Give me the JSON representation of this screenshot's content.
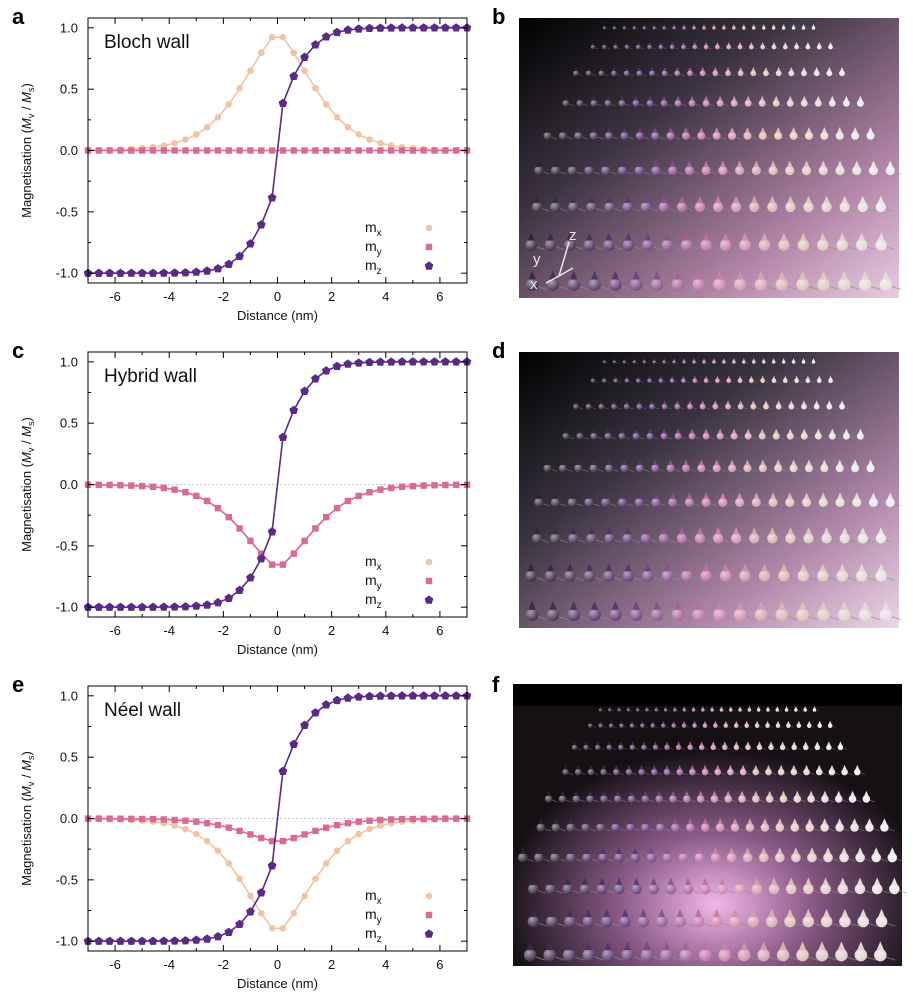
{
  "panels": {
    "a": "a",
    "b": "b",
    "c": "c",
    "d": "d",
    "e": "e",
    "f": "f"
  },
  "axes_labels": {
    "y": "y",
    "z": "z",
    "x": "x"
  },
  "colors": {
    "mx": "#f2c4a4",
    "my": "#d96a94",
    "mz": "#5b2a86"
  },
  "chart_data": [
    {
      "type": "line",
      "title": "Bloch wall",
      "xlabel": "Distance (nm)",
      "ylabel": "Magnetisation (M_v / M_s)",
      "ylabel_parts": {
        "pre": "Magnetisation (",
        "m1": "M",
        "s1": "v",
        "sep": " / ",
        "m2": "M",
        "s2": "s",
        "post": ")"
      },
      "xlim": [
        -7,
        7
      ],
      "ylim": [
        -1.08,
        1.08
      ],
      "xticks": [
        -6,
        -4,
        -2,
        0,
        2,
        4,
        6
      ],
      "xtick_labels": [
        "-6",
        "-4",
        "-2",
        "0",
        "2",
        "4",
        "6"
      ],
      "yticks": [
        -1.0,
        -0.5,
        0.0,
        0.5,
        1.0
      ],
      "ytick_labels": [
        "-1.0",
        "-0.5",
        "0.0",
        "0.5",
        "1.0"
      ],
      "x": [
        -7.0,
        -6.6,
        -6.2,
        -5.8,
        -5.4,
        -5.0,
        -4.6,
        -4.2,
        -3.8,
        -3.4,
        -3.0,
        -2.6,
        -2.2,
        -1.8,
        -1.4,
        -1.0,
        -0.6,
        -0.2,
        0.2,
        0.6,
        1.0,
        1.4,
        1.8,
        2.2,
        2.6,
        3.0,
        3.4,
        3.8,
        4.2,
        4.6,
        5.0,
        5.4,
        5.8,
        6.2,
        6.6,
        7.0
      ],
      "series": [
        {
          "name": "mx",
          "label_main": "m",
          "label_sub": "x",
          "marker": "circle",
          "values": [
            0.003,
            0.004,
            0.006,
            0.008,
            0.012,
            0.018,
            0.027,
            0.04,
            0.06,
            0.089,
            0.131,
            0.19,
            0.271,
            0.376,
            0.507,
            0.65,
            0.796,
            0.923,
            0.923,
            0.796,
            0.65,
            0.507,
            0.376,
            0.271,
            0.19,
            0.131,
            0.089,
            0.06,
            0.04,
            0.027,
            0.018,
            0.012,
            0.008,
            0.006,
            0.004,
            0.003
          ]
        },
        {
          "name": "my",
          "label_main": "m",
          "label_sub": "y",
          "marker": "square",
          "values": [
            0.0,
            0.0,
            0.0,
            0.0,
            0.0,
            0.0,
            0.0,
            0.0,
            0.0,
            0.0,
            0.0,
            0.0,
            0.0,
            0.0,
            0.0,
            0.0,
            0.0,
            0.0,
            0.0,
            0.0,
            0.0,
            0.0,
            0.0,
            0.0,
            0.0,
            0.0,
            0.0,
            0.0,
            0.0,
            0.0,
            0.0,
            0.0,
            0.0,
            0.0,
            0.0,
            0.0
          ]
        },
        {
          "name": "mz",
          "label_main": "m",
          "label_sub": "z",
          "marker": "pentagon",
          "values": [
            -1.0,
            -1.0,
            -1.0,
            -1.0,
            -1.0,
            -1.0,
            -1.0,
            -0.999,
            -0.998,
            -0.996,
            -0.991,
            -0.982,
            -0.963,
            -0.927,
            -0.862,
            -0.76,
            -0.605,
            -0.385,
            0.385,
            0.605,
            0.76,
            0.862,
            0.927,
            0.963,
            0.982,
            0.991,
            0.996,
            0.998,
            0.999,
            1.0,
            1.0,
            1.0,
            1.0,
            1.0,
            1.0,
            1.0
          ]
        }
      ]
    },
    {
      "type": "line",
      "title": "Hybrid wall",
      "xlabel": "Distance (nm)",
      "ylabel": "Magnetisation (M_v / M_s)",
      "ylabel_parts": {
        "pre": "Magnetisation (",
        "m1": "M",
        "s1": "v",
        "sep": " / ",
        "m2": "M",
        "s2": "s",
        "post": ")"
      },
      "xlim": [
        -7,
        7
      ],
      "ylim": [
        -1.08,
        1.08
      ],
      "xticks": [
        -6,
        -4,
        -2,
        0,
        2,
        4,
        6
      ],
      "xtick_labels": [
        "-6",
        "-4",
        "-2",
        "0",
        "2",
        "4",
        "6"
      ],
      "yticks": [
        -1.0,
        -0.5,
        0.0,
        0.5,
        1.0
      ],
      "ytick_labels": [
        "-1.0",
        "-0.5",
        "0.0",
        "0.5",
        "1.0"
      ],
      "x": [
        -7.0,
        -6.6,
        -6.2,
        -5.8,
        -5.4,
        -5.0,
        -4.6,
        -4.2,
        -3.8,
        -3.4,
        -3.0,
        -2.6,
        -2.2,
        -1.8,
        -1.4,
        -1.0,
        -0.6,
        -0.2,
        0.2,
        0.6,
        1.0,
        1.4,
        1.8,
        2.2,
        2.6,
        3.0,
        3.4,
        3.8,
        4.2,
        4.6,
        5.0,
        5.4,
        5.8,
        6.2,
        6.6,
        7.0
      ],
      "series": [
        {
          "name": "mx",
          "label_main": "m",
          "label_sub": "x",
          "marker": "circle",
          "values": [
            -0.002,
            -0.003,
            -0.004,
            -0.006,
            -0.009,
            -0.013,
            -0.019,
            -0.028,
            -0.042,
            -0.063,
            -0.093,
            -0.134,
            -0.192,
            -0.266,
            -0.358,
            -0.46,
            -0.563,
            -0.653,
            -0.653,
            -0.563,
            -0.46,
            -0.358,
            -0.266,
            -0.192,
            -0.134,
            -0.093,
            -0.063,
            -0.042,
            -0.028,
            -0.019,
            -0.013,
            -0.009,
            -0.006,
            -0.004,
            -0.003,
            -0.002
          ]
        },
        {
          "name": "my",
          "label_main": "m",
          "label_sub": "y",
          "marker": "square",
          "values": [
            -0.002,
            -0.003,
            -0.004,
            -0.006,
            -0.009,
            -0.013,
            -0.019,
            -0.028,
            -0.042,
            -0.063,
            -0.093,
            -0.134,
            -0.192,
            -0.266,
            -0.358,
            -0.46,
            -0.563,
            -0.653,
            -0.653,
            -0.563,
            -0.46,
            -0.358,
            -0.266,
            -0.192,
            -0.134,
            -0.093,
            -0.063,
            -0.042,
            -0.028,
            -0.019,
            -0.013,
            -0.009,
            -0.006,
            -0.004,
            -0.003,
            -0.002
          ]
        },
        {
          "name": "mz",
          "label_main": "m",
          "label_sub": "z",
          "marker": "pentagon",
          "values": [
            -1.0,
            -1.0,
            -1.0,
            -1.0,
            -1.0,
            -1.0,
            -1.0,
            -0.999,
            -0.998,
            -0.996,
            -0.991,
            -0.982,
            -0.963,
            -0.927,
            -0.862,
            -0.76,
            -0.605,
            -0.385,
            0.385,
            0.605,
            0.76,
            0.862,
            0.927,
            0.963,
            0.982,
            0.991,
            0.996,
            0.998,
            0.999,
            1.0,
            1.0,
            1.0,
            1.0,
            1.0,
            1.0,
            1.0
          ]
        }
      ]
    },
    {
      "type": "line",
      "title": "Néel wall",
      "xlabel": "Distance (nm)",
      "ylabel": "Magnetisation (M_v / M_s)",
      "ylabel_parts": {
        "pre": "Magnetisation (",
        "m1": "M",
        "s1": "v",
        "sep": " / ",
        "m2": "M",
        "s2": "s",
        "post": ")"
      },
      "xlim": [
        -7,
        7
      ],
      "ylim": [
        -1.08,
        1.08
      ],
      "xticks": [
        -6,
        -4,
        -2,
        0,
        2,
        4,
        6
      ],
      "xtick_labels": [
        "-6",
        "-4",
        "-2",
        "0",
        "2",
        "4",
        "6"
      ],
      "yticks": [
        -1.0,
        -0.5,
        0.0,
        0.5,
        1.0
      ],
      "ytick_labels": [
        "-1.0",
        "-0.5",
        "0.0",
        "0.5",
        "1.0"
      ],
      "x": [
        -7.0,
        -6.6,
        -6.2,
        -5.8,
        -5.4,
        -5.0,
        -4.6,
        -4.2,
        -3.8,
        -3.4,
        -3.0,
        -2.6,
        -2.2,
        -1.8,
        -1.4,
        -1.0,
        -0.6,
        -0.2,
        0.2,
        0.6,
        1.0,
        1.4,
        1.8,
        2.2,
        2.6,
        3.0,
        3.4,
        3.8,
        4.2,
        4.6,
        5.0,
        5.4,
        5.8,
        6.2,
        6.6,
        7.0
      ],
      "series": [
        {
          "name": "mx",
          "label_main": "m",
          "label_sub": "x",
          "marker": "circle",
          "values": [
            -0.003,
            -0.004,
            -0.006,
            -0.008,
            -0.012,
            -0.017,
            -0.026,
            -0.039,
            -0.058,
            -0.086,
            -0.127,
            -0.185,
            -0.263,
            -0.365,
            -0.492,
            -0.631,
            -0.772,
            -0.895,
            -0.895,
            -0.772,
            -0.631,
            -0.492,
            -0.365,
            -0.263,
            -0.185,
            -0.127,
            -0.086,
            -0.058,
            -0.039,
            -0.026,
            -0.017,
            -0.012,
            -0.008,
            -0.006,
            -0.004,
            -0.003
          ]
        },
        {
          "name": "my",
          "label_main": "m",
          "label_sub": "y",
          "marker": "square",
          "values": [
            -0.001,
            -0.001,
            -0.001,
            -0.002,
            -0.003,
            -0.004,
            -0.005,
            -0.008,
            -0.012,
            -0.018,
            -0.026,
            -0.038,
            -0.054,
            -0.075,
            -0.101,
            -0.13,
            -0.159,
            -0.184,
            -0.184,
            -0.159,
            -0.13,
            -0.101,
            -0.075,
            -0.054,
            -0.038,
            -0.026,
            -0.018,
            -0.012,
            -0.008,
            -0.005,
            -0.004,
            -0.003,
            -0.002,
            -0.001,
            -0.001,
            -0.001
          ]
        },
        {
          "name": "mz",
          "label_main": "m",
          "label_sub": "z",
          "marker": "pentagon",
          "values": [
            -1.0,
            -1.0,
            -1.0,
            -1.0,
            -1.0,
            -1.0,
            -1.0,
            -0.999,
            -0.998,
            -0.996,
            -0.991,
            -0.982,
            -0.963,
            -0.927,
            -0.862,
            -0.76,
            -0.605,
            -0.385,
            0.385,
            0.605,
            0.76,
            0.862,
            0.927,
            0.963,
            0.982,
            0.991,
            0.996,
            0.998,
            0.999,
            1.0,
            1.0,
            1.0,
            1.0,
            1.0,
            1.0,
            1.0
          ]
        }
      ]
    }
  ]
}
